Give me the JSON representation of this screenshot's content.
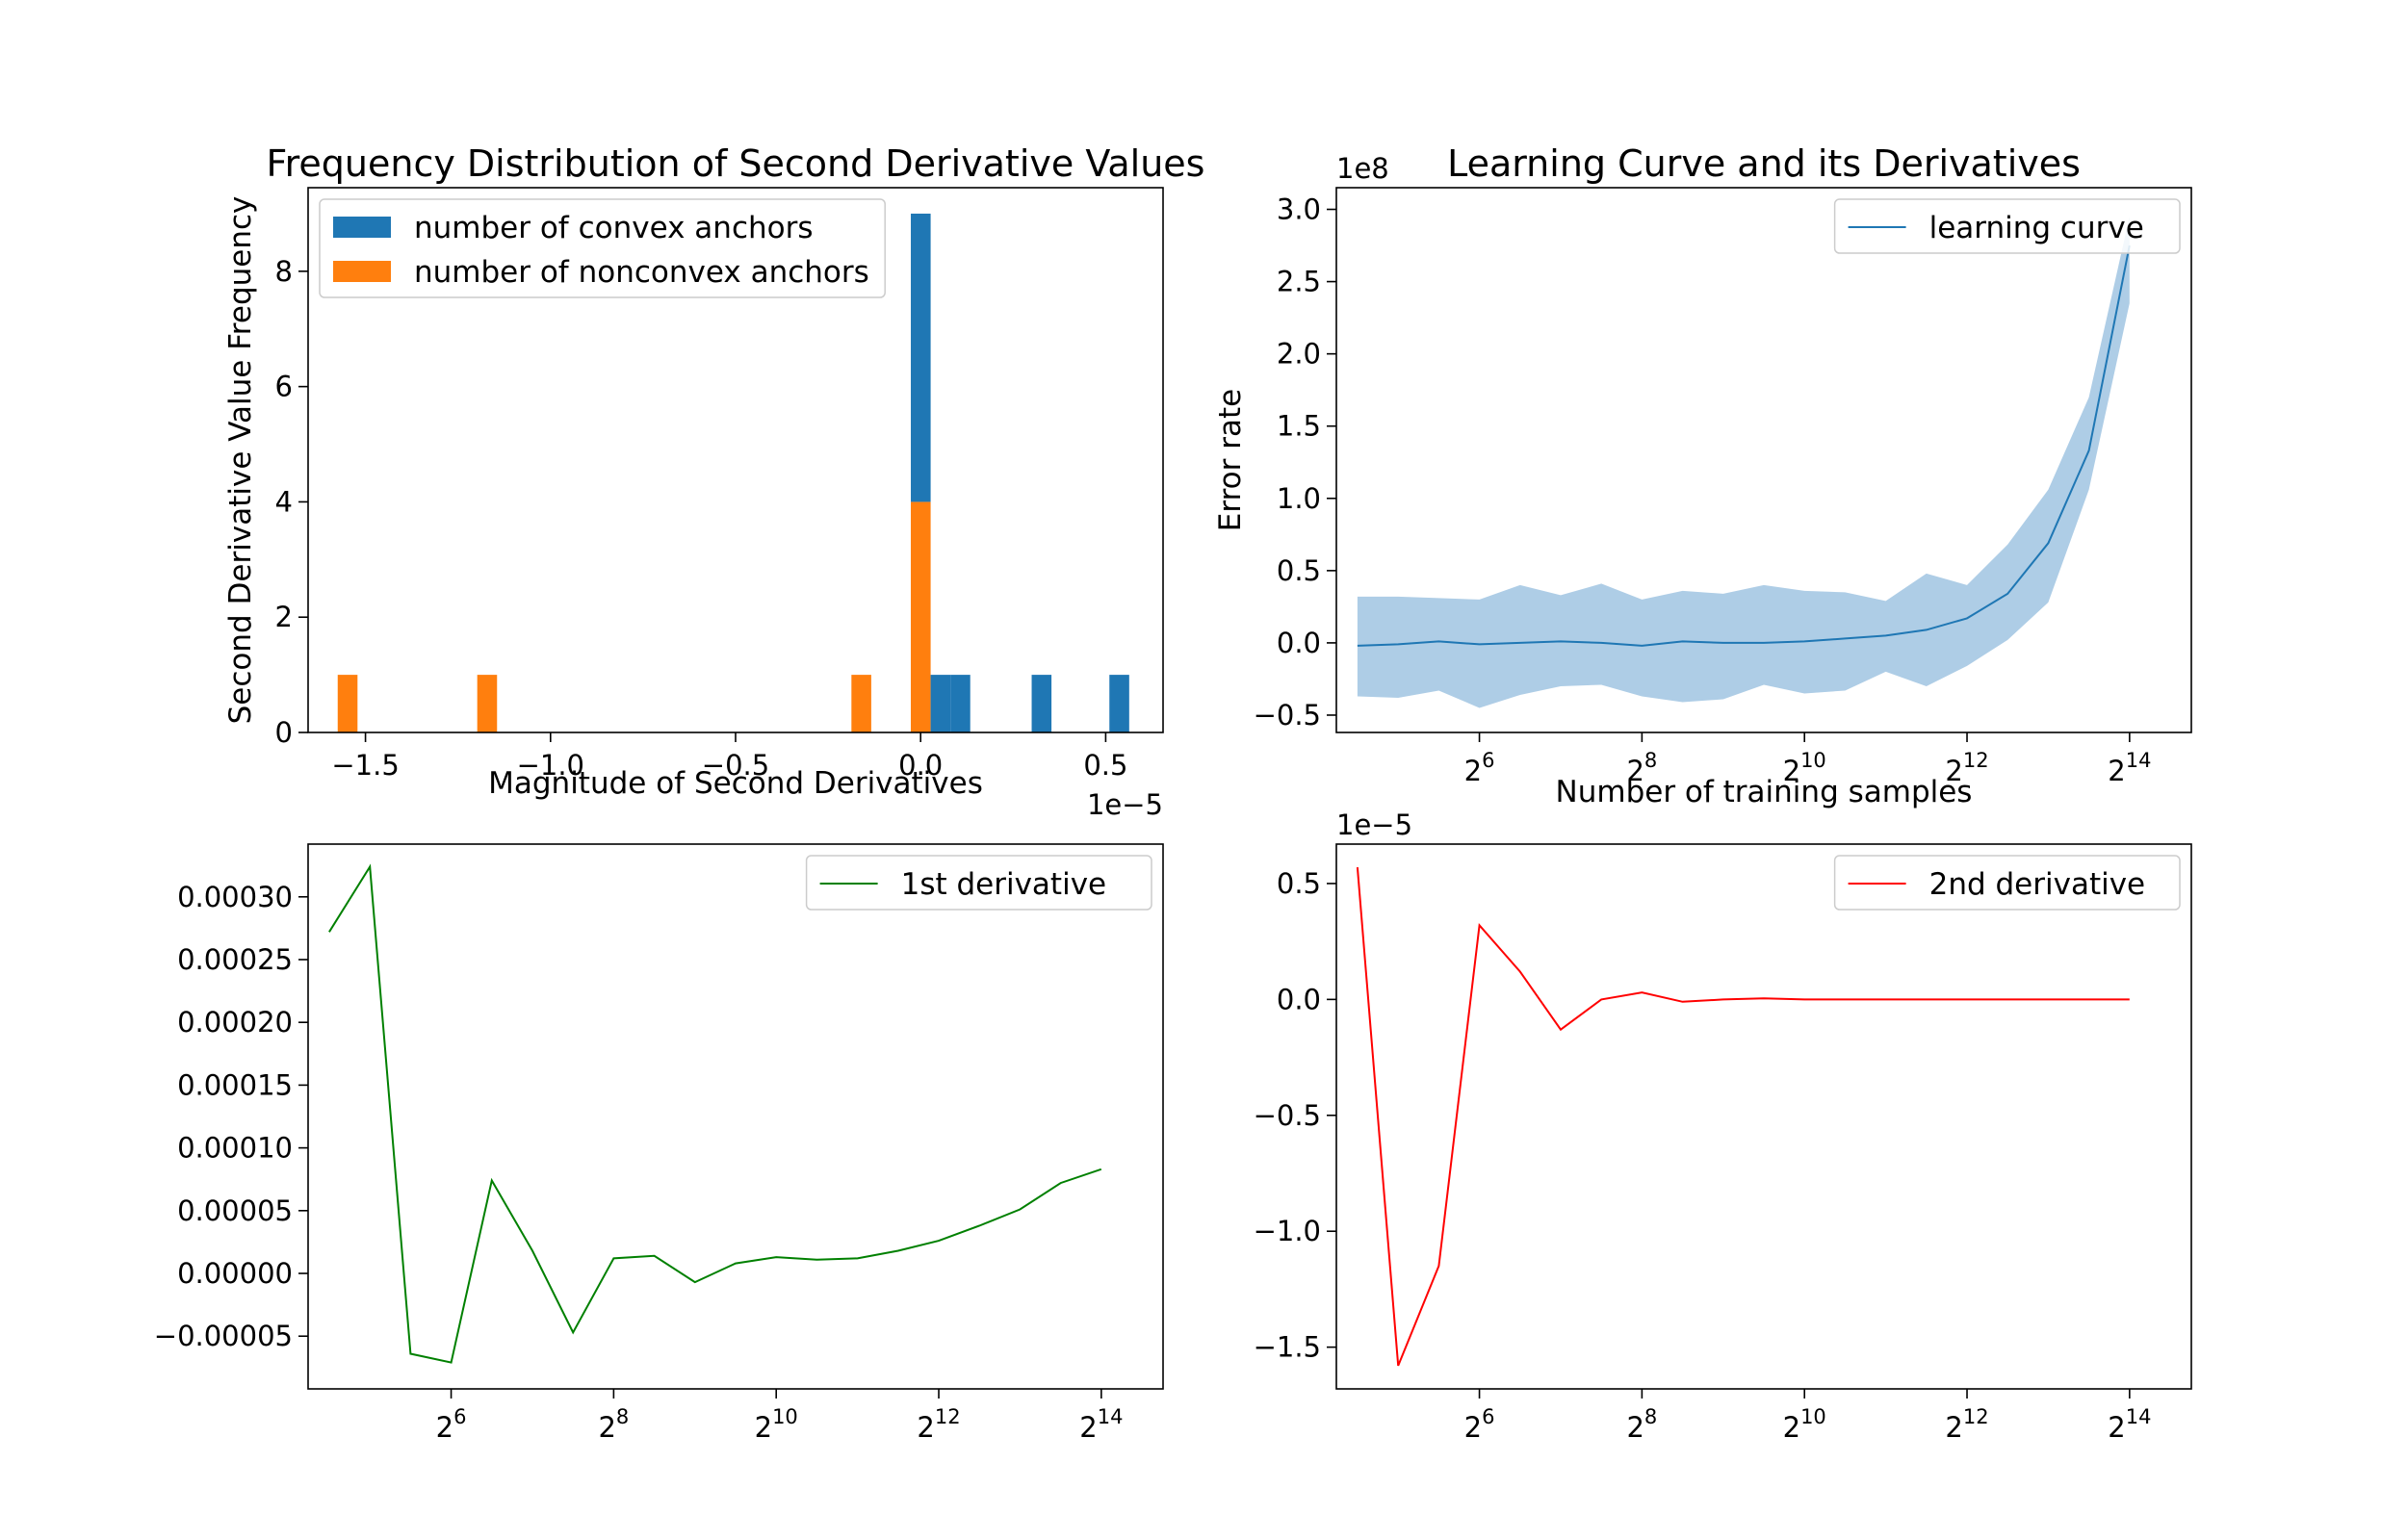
{
  "colors": {
    "convex": "#1f77b4",
    "nonconvex": "#ff7f0e",
    "curve": "#1f77b4",
    "band": "#aecde6",
    "first": "#008000",
    "second": "#ff0000"
  },
  "chart_data": [
    {
      "id": "histogram",
      "type": "bar",
      "title": "Frequency Distribution of Second Derivative Values",
      "xlabel": "Magnitude of Second Derivatives",
      "ylabel": "Second Derivative Value Frequency",
      "x_offset_label": "1e−5",
      "xlim": [
        -1.655,
        0.655
      ],
      "ylim": [
        0,
        9.45
      ],
      "x_ticks": [
        {
          "value": -1.5,
          "label": "−1.5"
        },
        {
          "value": -1.0,
          "label": "−1.0"
        },
        {
          "value": -0.5,
          "label": "−0.5"
        },
        {
          "value": 0.0,
          "label": "0.0"
        },
        {
          "value": 0.5,
          "label": "0.5"
        }
      ],
      "y_ticks": [
        {
          "value": 0,
          "label": "0"
        },
        {
          "value": 2,
          "label": "2"
        },
        {
          "value": 4,
          "label": "4"
        },
        {
          "value": 6,
          "label": "6"
        },
        {
          "value": 8,
          "label": "8"
        }
      ],
      "bin_width": 0.0535,
      "stacked": true,
      "series": [
        {
          "name": "number of nonconvex anchors",
          "color_key": "nonconvex",
          "bars": [
            {
              "left": -1.575,
              "value": 1
            },
            {
              "left": -1.198,
              "value": 1
            },
            {
              "left": -0.187,
              "value": 1
            },
            {
              "left": -0.0265,
              "value": 4
            }
          ]
        },
        {
          "name": "number of convex anchors",
          "color_key": "convex",
          "bars": [
            {
              "left": -0.0265,
              "value": 5
            },
            {
              "left": 0.027,
              "value": 1
            },
            {
              "left": 0.0805,
              "value": 1
            },
            {
              "left": 0.3,
              "value": 1
            },
            {
              "left": 0.51,
              "value": 1
            }
          ]
        }
      ],
      "legend": [
        "number of convex anchors",
        "number of nonconvex anchors"
      ],
      "legend_position": "top-left"
    },
    {
      "id": "learning-curve",
      "type": "line",
      "title": "Learning Curve and its Derivatives",
      "xlabel": "Number of training samples",
      "ylabel": "Error rate",
      "y_offset_label": "1e8",
      "x_scale": "log2",
      "xlim": [
        4.24,
        14.76
      ],
      "ylim": [
        -0.62,
        3.15
      ],
      "x_ticks": [
        {
          "exp": 6,
          "base": "2",
          "sup": "6"
        },
        {
          "exp": 8,
          "base": "2",
          "sup": "8"
        },
        {
          "exp": 10,
          "base": "2",
          "sup": "10"
        },
        {
          "exp": 12,
          "base": "2",
          "sup": "12"
        },
        {
          "exp": 14,
          "base": "2",
          "sup": "14"
        }
      ],
      "y_ticks": [
        {
          "value": -0.5,
          "label": "−0.5"
        },
        {
          "value": 0.0,
          "label": "0.0"
        },
        {
          "value": 0.5,
          "label": "0.5"
        },
        {
          "value": 1.0,
          "label": "1.0"
        },
        {
          "value": 1.5,
          "label": "1.5"
        },
        {
          "value": 2.0,
          "label": "2.0"
        },
        {
          "value": 2.5,
          "label": "2.5"
        },
        {
          "value": 3.0,
          "label": "3.0"
        }
      ],
      "series": [
        {
          "name": "learning curve",
          "color_key": "curve",
          "x": [
            4.5,
            5.0,
            5.5,
            6.0,
            6.5,
            7.0,
            7.5,
            8.0,
            8.5,
            9.0,
            9.5,
            10.0,
            10.5,
            11.0,
            11.5,
            12.0,
            12.5,
            13.0,
            13.5,
            14.0
          ],
          "y": [
            -0.02,
            -0.01,
            0.01,
            -0.01,
            0.0,
            0.01,
            0.0,
            -0.02,
            0.01,
            0.0,
            0.0,
            0.01,
            0.03,
            0.05,
            0.09,
            0.17,
            0.34,
            0.69,
            1.33,
            2.75
          ],
          "band_low": [
            -0.37,
            -0.38,
            -0.33,
            -0.45,
            -0.36,
            -0.3,
            -0.29,
            -0.37,
            -0.41,
            -0.39,
            -0.29,
            -0.35,
            -0.33,
            -0.2,
            -0.3,
            -0.16,
            0.02,
            0.28,
            1.06,
            2.35
          ],
          "band_high": [
            0.32,
            0.32,
            0.31,
            0.3,
            0.4,
            0.33,
            0.41,
            0.3,
            0.36,
            0.34,
            0.4,
            0.36,
            0.35,
            0.29,
            0.48,
            0.4,
            0.68,
            1.06,
            1.7,
            2.95
          ]
        }
      ],
      "legend": [
        "learning curve"
      ],
      "legend_position": "top-right"
    },
    {
      "id": "first-derivative",
      "type": "line",
      "title": "",
      "xlabel": "",
      "ylabel": "",
      "x_scale": "log2",
      "xlim": [
        4.24,
        14.76
      ],
      "ylim": [
        -9.2e-05,
        0.000342
      ],
      "x_ticks": [
        {
          "exp": 6,
          "base": "2",
          "sup": "6"
        },
        {
          "exp": 8,
          "base": "2",
          "sup": "8"
        },
        {
          "exp": 10,
          "base": "2",
          "sup": "10"
        },
        {
          "exp": 12,
          "base": "2",
          "sup": "12"
        },
        {
          "exp": 14,
          "base": "2",
          "sup": "14"
        }
      ],
      "y_ticks": [
        {
          "value": -5e-05,
          "label": "−0.00005"
        },
        {
          "value": 0.0,
          "label": "0.00000"
        },
        {
          "value": 5e-05,
          "label": "0.00005"
        },
        {
          "value": 0.0001,
          "label": "0.00010"
        },
        {
          "value": 0.00015,
          "label": "0.00015"
        },
        {
          "value": 0.0002,
          "label": "0.00020"
        },
        {
          "value": 0.00025,
          "label": "0.00025"
        },
        {
          "value": 0.0003,
          "label": "0.00030"
        }
      ],
      "series": [
        {
          "name": "1st derivative",
          "color_key": "first",
          "x": [
            4.5,
            5.0,
            5.5,
            6.0,
            6.5,
            7.0,
            7.5,
            8.0,
            8.5,
            9.0,
            9.5,
            10.0,
            10.5,
            11.0,
            11.5,
            12.0,
            12.5,
            13.0,
            13.5,
            14.0
          ],
          "y": [
            0.000272,
            0.000324,
            -6.4e-05,
            -7.1e-05,
            7.4e-05,
            1.8e-05,
            -4.7e-05,
            1.2e-05,
            1.4e-05,
            -7e-06,
            8e-06,
            1.3e-05,
            1.1e-05,
            1.2e-05,
            1.8e-05,
            2.6e-05,
            3.8e-05,
            5.1e-05,
            7.2e-05,
            8.3e-05
          ]
        }
      ],
      "legend": [
        "1st derivative"
      ],
      "legend_position": "top-right"
    },
    {
      "id": "second-derivative",
      "type": "line",
      "title": "",
      "xlabel": "",
      "ylabel": "",
      "y_offset_label": "1e−5",
      "x_scale": "log2",
      "xlim": [
        4.24,
        14.76
      ],
      "ylim": [
        -1.68,
        0.67
      ],
      "x_ticks": [
        {
          "exp": 6,
          "base": "2",
          "sup": "6"
        },
        {
          "exp": 8,
          "base": "2",
          "sup": "8"
        },
        {
          "exp": 10,
          "base": "2",
          "sup": "10"
        },
        {
          "exp": 12,
          "base": "2",
          "sup": "12"
        },
        {
          "exp": 14,
          "base": "2",
          "sup": "14"
        }
      ],
      "y_ticks": [
        {
          "value": -1.5,
          "label": "−1.5"
        },
        {
          "value": -1.0,
          "label": "−1.0"
        },
        {
          "value": -0.5,
          "label": "−0.5"
        },
        {
          "value": 0.0,
          "label": "0.0"
        },
        {
          "value": 0.5,
          "label": "0.5"
        }
      ],
      "series": [
        {
          "name": "2nd derivative",
          "color_key": "second",
          "x": [
            4.5,
            5.0,
            5.5,
            6.0,
            6.5,
            7.0,
            7.5,
            8.0,
            8.5,
            9.0,
            9.5,
            10.0,
            10.5,
            11.0,
            11.5,
            12.0,
            12.5,
            13.0,
            13.5,
            14.0
          ],
          "y": [
            0.57,
            -1.58,
            -1.15,
            0.32,
            0.12,
            -0.13,
            0.0,
            0.03,
            -0.01,
            0.0,
            0.005,
            0.0,
            0.0,
            0.0,
            0.0,
            0.0,
            0.0,
            0.0,
            0.0,
            0.0
          ]
        }
      ],
      "legend": [
        "2nd derivative"
      ],
      "legend_position": "top-right"
    }
  ]
}
